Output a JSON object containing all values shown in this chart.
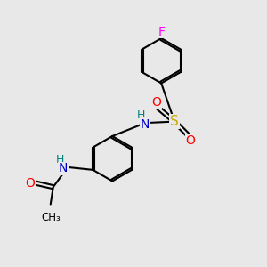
{
  "bg_color": "#e8e8e8",
  "atom_color_C": "#000000",
  "atom_color_N": "#0000cd",
  "atom_color_NH": "#008080",
  "atom_color_O": "#ff0000",
  "atom_color_S": "#ccaa00",
  "atom_color_F": "#ff00ff",
  "bond_color": "#000000",
  "bond_width": 1.5,
  "figsize": [
    3.0,
    3.0
  ],
  "dpi": 100,
  "xlim": [
    0,
    10
  ],
  "ylim": [
    0,
    10
  ]
}
